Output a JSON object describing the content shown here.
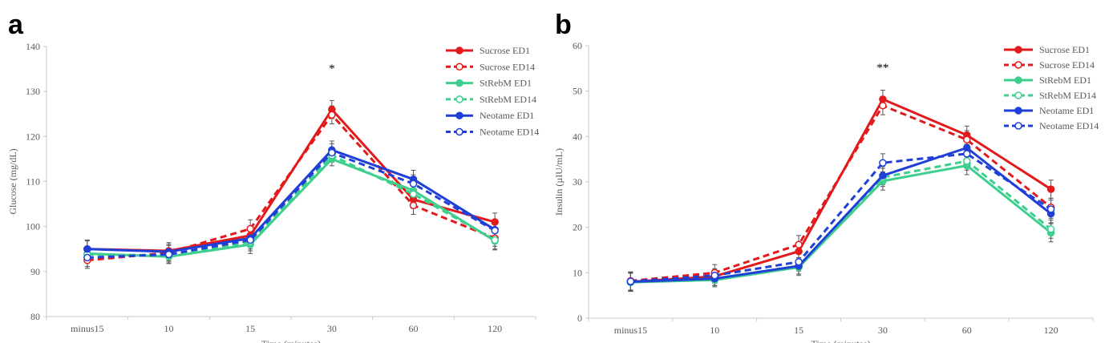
{
  "chart_data": [
    {
      "panel": "a",
      "type": "line",
      "ylabel": "Glucose (mg/dL)",
      "xlabel": "Time (minutes)",
      "categories": [
        "minus15",
        "10",
        "15",
        "30",
        "60",
        "120"
      ],
      "ylim": [
        80,
        140
      ],
      "yticks": [
        80,
        90,
        100,
        110,
        120,
        130,
        140
      ],
      "annotation": {
        "text": "*",
        "category": "30"
      },
      "legend_position": "top-right",
      "series": [
        {
          "name": "Sucrose ED1",
          "color": "#e31a1c",
          "dashed": false,
          "filled": true,
          "values": [
            95.0,
            94.6,
            98.0,
            126.0,
            106.0,
            101.0
          ],
          "errors": [
            1.8,
            1.8,
            1.5,
            2.0,
            2.0,
            2.0
          ]
        },
        {
          "name": "Sucrose ED14",
          "color": "#e31a1c",
          "dashed": true,
          "filled": false,
          "values": [
            92.5,
            94.2,
            99.5,
            124.8,
            104.7,
            97.4
          ],
          "errors": [
            1.8,
            1.8,
            2.0,
            2.0,
            2.0,
            1.8
          ]
        },
        {
          "name": "StRebM ED1",
          "color": "#3ecf8e",
          "dashed": false,
          "filled": true,
          "values": [
            94.0,
            93.3,
            96.0,
            115.0,
            108.0,
            96.8
          ],
          "errors": [
            1.5,
            1.5,
            2.0,
            1.5,
            2.0,
            2.0
          ]
        },
        {
          "name": "StRebM ED14",
          "color": "#3ecf8e",
          "dashed": true,
          "filled": false,
          "values": [
            93.8,
            93.6,
            96.6,
            115.8,
            107.2,
            97.0
          ],
          "errors": [
            1.5,
            1.5,
            2.0,
            1.5,
            2.0,
            2.0
          ]
        },
        {
          "name": "Neotame ED1",
          "color": "#1f3fd6",
          "dashed": false,
          "filled": true,
          "values": [
            95.0,
            94.4,
            97.4,
            117.0,
            110.5,
            99.3
          ],
          "errors": [
            2.0,
            2.0,
            2.0,
            2.0,
            2.0,
            2.0
          ]
        },
        {
          "name": "Neotame ED14",
          "color": "#1f3fd6",
          "dashed": true,
          "filled": false,
          "values": [
            93.1,
            93.8,
            97.0,
            116.4,
            109.5,
            99.1
          ],
          "errors": [
            2.0,
            2.0,
            2.0,
            2.0,
            2.0,
            2.0
          ]
        }
      ]
    },
    {
      "panel": "b",
      "type": "line",
      "ylabel": "Insulin (µIU/mL)",
      "xlabel": "Time (minutes)",
      "categories": [
        "minus15",
        "10",
        "15",
        "30",
        "60",
        "120"
      ],
      "ylim": [
        0,
        60
      ],
      "yticks": [
        0,
        10,
        20,
        30,
        40,
        50,
        60
      ],
      "annotation": {
        "text": "**",
        "category": "30"
      },
      "legend_position": "top-right",
      "series": [
        {
          "name": "Sucrose ED1",
          "color": "#e31a1c",
          "dashed": false,
          "filled": true,
          "values": [
            8.0,
            9.2,
            14.7,
            48.2,
            40.3,
            28.4
          ],
          "errors": [
            2.0,
            1.5,
            2.0,
            2.0,
            2.0,
            2.0
          ]
        },
        {
          "name": "Sucrose ED14",
          "color": "#e31a1c",
          "dashed": true,
          "filled": false,
          "values": [
            8.2,
            10.0,
            16.2,
            46.8,
            39.3,
            24.4
          ],
          "errors": [
            2.0,
            1.8,
            2.0,
            2.0,
            2.0,
            2.0
          ]
        },
        {
          "name": "StRebM ED1",
          "color": "#3ecf8e",
          "dashed": false,
          "filled": true,
          "values": [
            7.9,
            8.4,
            11.2,
            30.2,
            33.6,
            18.8
          ],
          "errors": [
            2.0,
            1.5,
            1.8,
            2.0,
            2.0,
            2.0
          ]
        },
        {
          "name": "StRebM ED14",
          "color": "#3ecf8e",
          "dashed": true,
          "filled": false,
          "values": [
            7.9,
            8.7,
            11.5,
            31.0,
            34.6,
            19.6
          ],
          "errors": [
            2.0,
            1.5,
            1.8,
            2.0,
            2.0,
            2.0
          ]
        },
        {
          "name": "Neotame ED1",
          "color": "#1f3fd6",
          "dashed": false,
          "filled": true,
          "values": [
            8.0,
            8.7,
            11.5,
            31.4,
            37.5,
            23.0
          ],
          "errors": [
            2.0,
            1.5,
            1.8,
            2.0,
            2.0,
            2.0
          ]
        },
        {
          "name": "Neotame ED14",
          "color": "#1f3fd6",
          "dashed": true,
          "filled": false,
          "values": [
            8.1,
            9.4,
            12.4,
            34.2,
            36.2,
            24.0
          ],
          "errors": [
            2.0,
            1.5,
            2.0,
            2.0,
            2.0,
            2.0
          ]
        }
      ]
    }
  ]
}
